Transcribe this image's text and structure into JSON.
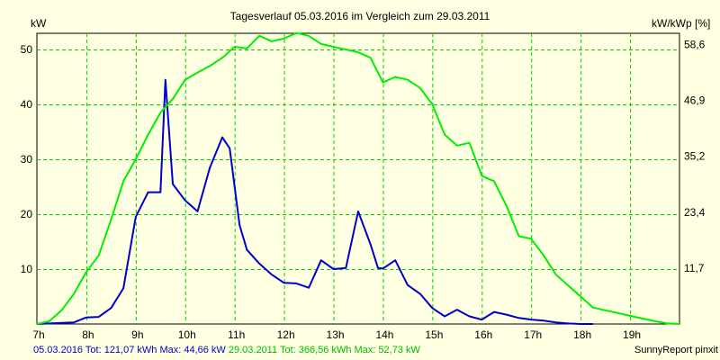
{
  "header": {
    "title": "Tagesverlauf 05.03.2016 im Vergleich zum 29.03.2011",
    "unit_left": "kW",
    "unit_right": "kW/kWp [%]"
  },
  "footer": {
    "series1_text": "05.03.2016 Tot: 121,07 kWh Max: 44,66 kW",
    "series2_text": " 29.03.2011 Tot: 366,56 kWh Max: 52,73 kW",
    "credit": "SunnyReport pinxit"
  },
  "colors": {
    "background": "#ffffe1",
    "plot_background": "#ffffe1",
    "grid": "#00cc00",
    "series_2016": "#0000cc",
    "series_2011": "#00ee00",
    "frame": "#000000"
  },
  "chart_data": {
    "type": "line",
    "title": "Tagesverlauf 05.03.2016 im Vergleich zum 29.03.2011",
    "xlabel": "",
    "ylabel": "kW",
    "y2label": "kW/kWp [%]",
    "xlim": [
      7,
      20
    ],
    "ylim": [
      0,
      52
    ],
    "x_ticks": [
      7,
      8,
      9,
      10,
      11,
      12,
      13,
      14,
      15,
      16,
      17,
      18,
      19
    ],
    "x_tick_labels": [
      "7h",
      "8h",
      "9h",
      "10h",
      "11h",
      "12h",
      "13h",
      "14h",
      "15h",
      "16h",
      "17h",
      "18h",
      "19h"
    ],
    "y_ticks": [
      10,
      20,
      30,
      40,
      50
    ],
    "y_tick_labels": [
      "10",
      "20",
      "30",
      "40",
      "50"
    ],
    "y2_ticks": [
      11.7,
      23.4,
      35.2,
      46.9,
      58.6
    ],
    "y2_tick_labels": [
      "11,7",
      "23,4",
      "35,2",
      "46,9",
      "58,6"
    ],
    "y2lim": [
      0,
      61
    ],
    "grid": true,
    "legend": "none",
    "series": [
      {
        "name": "05.03.2016",
        "color": "#0000cc",
        "x": [
          7.0,
          7.25,
          7.5,
          7.75,
          8.0,
          8.25,
          8.5,
          8.75,
          9.0,
          9.25,
          9.5,
          9.6,
          9.75,
          10.0,
          10.25,
          10.5,
          10.75,
          10.9,
          11.1,
          11.25,
          11.5,
          11.75,
          12.0,
          12.25,
          12.5,
          12.75,
          13.0,
          13.25,
          13.5,
          13.75,
          13.9,
          14.0,
          14.25,
          14.5,
          14.75,
          15.0,
          15.25,
          15.5,
          15.75,
          16.0,
          16.25,
          16.5,
          16.75,
          17.0,
          17.25,
          17.5,
          17.75,
          18.0,
          18.25
        ],
        "y": [
          0.0,
          0.1,
          0.2,
          0.3,
          1.2,
          1.3,
          2.9,
          6.5,
          19.5,
          24.0,
          24.0,
          44.5,
          25.5,
          22.5,
          20.5,
          28.5,
          34.0,
          32.0,
          18.0,
          13.5,
          11.0,
          9.0,
          7.5,
          7.4,
          6.6,
          11.6,
          10.0,
          10.2,
          20.5,
          14.5,
          10.2,
          10.1,
          11.6,
          7.1,
          5.5,
          2.9,
          1.4,
          2.6,
          1.4,
          0.8,
          2.2,
          1.7,
          1.1,
          0.8,
          0.6,
          0.3,
          0.1,
          0.0,
          0.0
        ]
      },
      {
        "name": "29.03.2011",
        "color": "#00ee00",
        "x": [
          7.0,
          7.25,
          7.5,
          7.75,
          8.0,
          8.25,
          8.5,
          8.75,
          9.0,
          9.25,
          9.5,
          9.75,
          10.0,
          10.25,
          10.5,
          10.75,
          11.0,
          11.25,
          11.5,
          11.75,
          12.0,
          12.25,
          12.5,
          12.75,
          13.0,
          13.25,
          13.5,
          13.75,
          14.0,
          14.25,
          14.5,
          14.75,
          15.0,
          15.25,
          15.5,
          15.75,
          16.0,
          16.25,
          16.5,
          16.75,
          17.0,
          17.25,
          17.5,
          17.75,
          18.0,
          18.25,
          18.5,
          18.75,
          19.0,
          19.25,
          19.5,
          19.75,
          20.0
        ],
        "y": [
          0.0,
          0.5,
          2.5,
          5.5,
          9.5,
          12.5,
          19.0,
          26.0,
          30.0,
          34.5,
          38.5,
          41.0,
          44.5,
          45.8,
          47.0,
          48.5,
          50.5,
          50.2,
          52.5,
          51.5,
          52.0,
          53.0,
          52.5,
          51.0,
          50.5,
          50.0,
          49.5,
          48.5,
          44.0,
          45.0,
          44.5,
          43.0,
          40.0,
          34.5,
          32.5,
          33.0,
          27.0,
          26.0,
          21.5,
          16.0,
          15.5,
          12.5,
          9.0,
          7.0,
          5.0,
          3.0,
          2.5,
          2.0,
          1.5,
          1.0,
          0.5,
          0.1,
          0.0
        ]
      }
    ]
  }
}
